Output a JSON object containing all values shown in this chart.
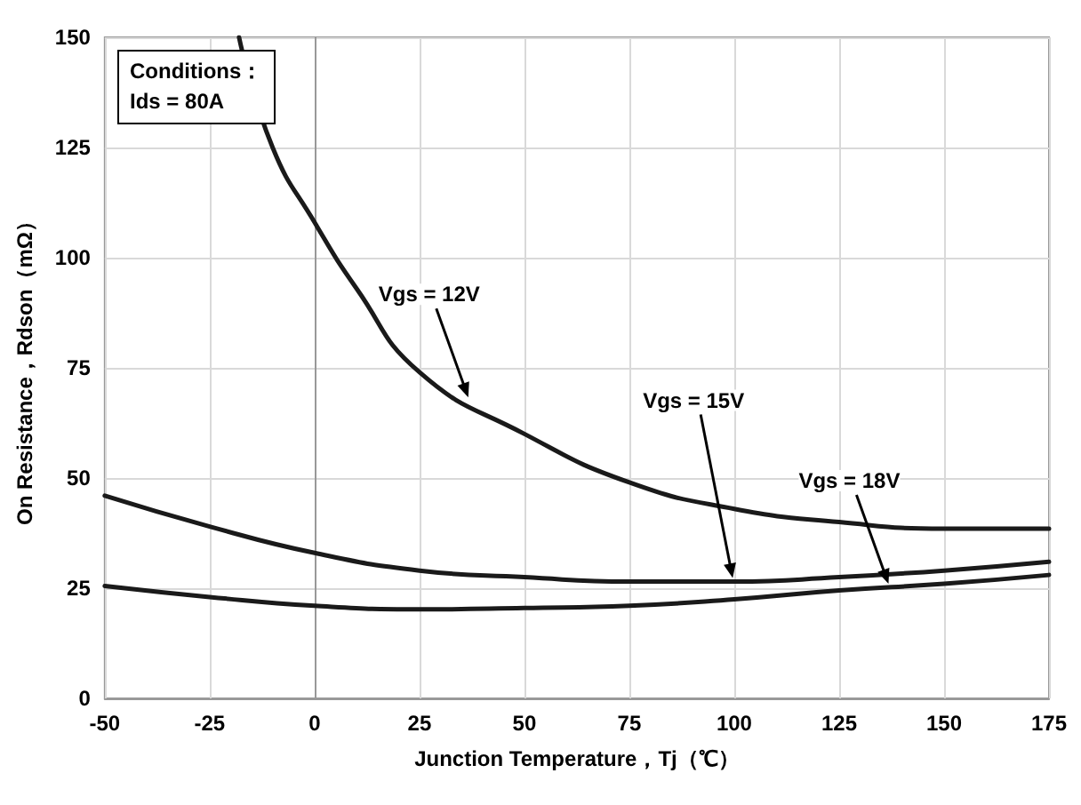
{
  "chart_data": {
    "type": "line",
    "xlabel": "Junction Temperature，Tj（℃）",
    "ylabel": "On Resistance，Rdson（mΩ）",
    "xlim": [
      -50,
      175
    ],
    "xticks": [
      -50,
      -25,
      0,
      25,
      50,
      75,
      100,
      125,
      150,
      175
    ],
    "ylim": [
      0,
      150
    ],
    "yticks": [
      0,
      25,
      50,
      75,
      100,
      125,
      150
    ],
    "grid": true,
    "legend": false,
    "marker": "none",
    "line_style": "solid",
    "series": [
      {
        "name": "Vgs = 12V",
        "color": "#1a1a1a",
        "x": [
          -18,
          -10,
          0,
          10,
          25,
          50,
          75,
          100,
          125,
          150,
          175
        ],
        "values": [
          150,
          125,
          108,
          93,
          74,
          60,
          49,
          43,
          40,
          38.5,
          38.5
        ]
      },
      {
        "name": "Vgs = 15V",
        "color": "#1a1a1a",
        "x": [
          -50,
          -25,
          0,
          25,
          50,
          75,
          100,
          125,
          150,
          175
        ],
        "values": [
          46,
          39,
          33,
          29,
          27.5,
          26.5,
          26.5,
          27.5,
          29,
          31
        ]
      },
      {
        "name": "Vgs = 18V",
        "color": "#1a1a1a",
        "x": [
          -50,
          -25,
          0,
          25,
          50,
          75,
          100,
          125,
          150,
          175
        ],
        "values": [
          25.5,
          23,
          21,
          20.2,
          20.5,
          21,
          22.5,
          24.5,
          26,
          28
        ]
      }
    ],
    "annotations": [
      "Conditions：\nIds = 80A"
    ]
  }
}
